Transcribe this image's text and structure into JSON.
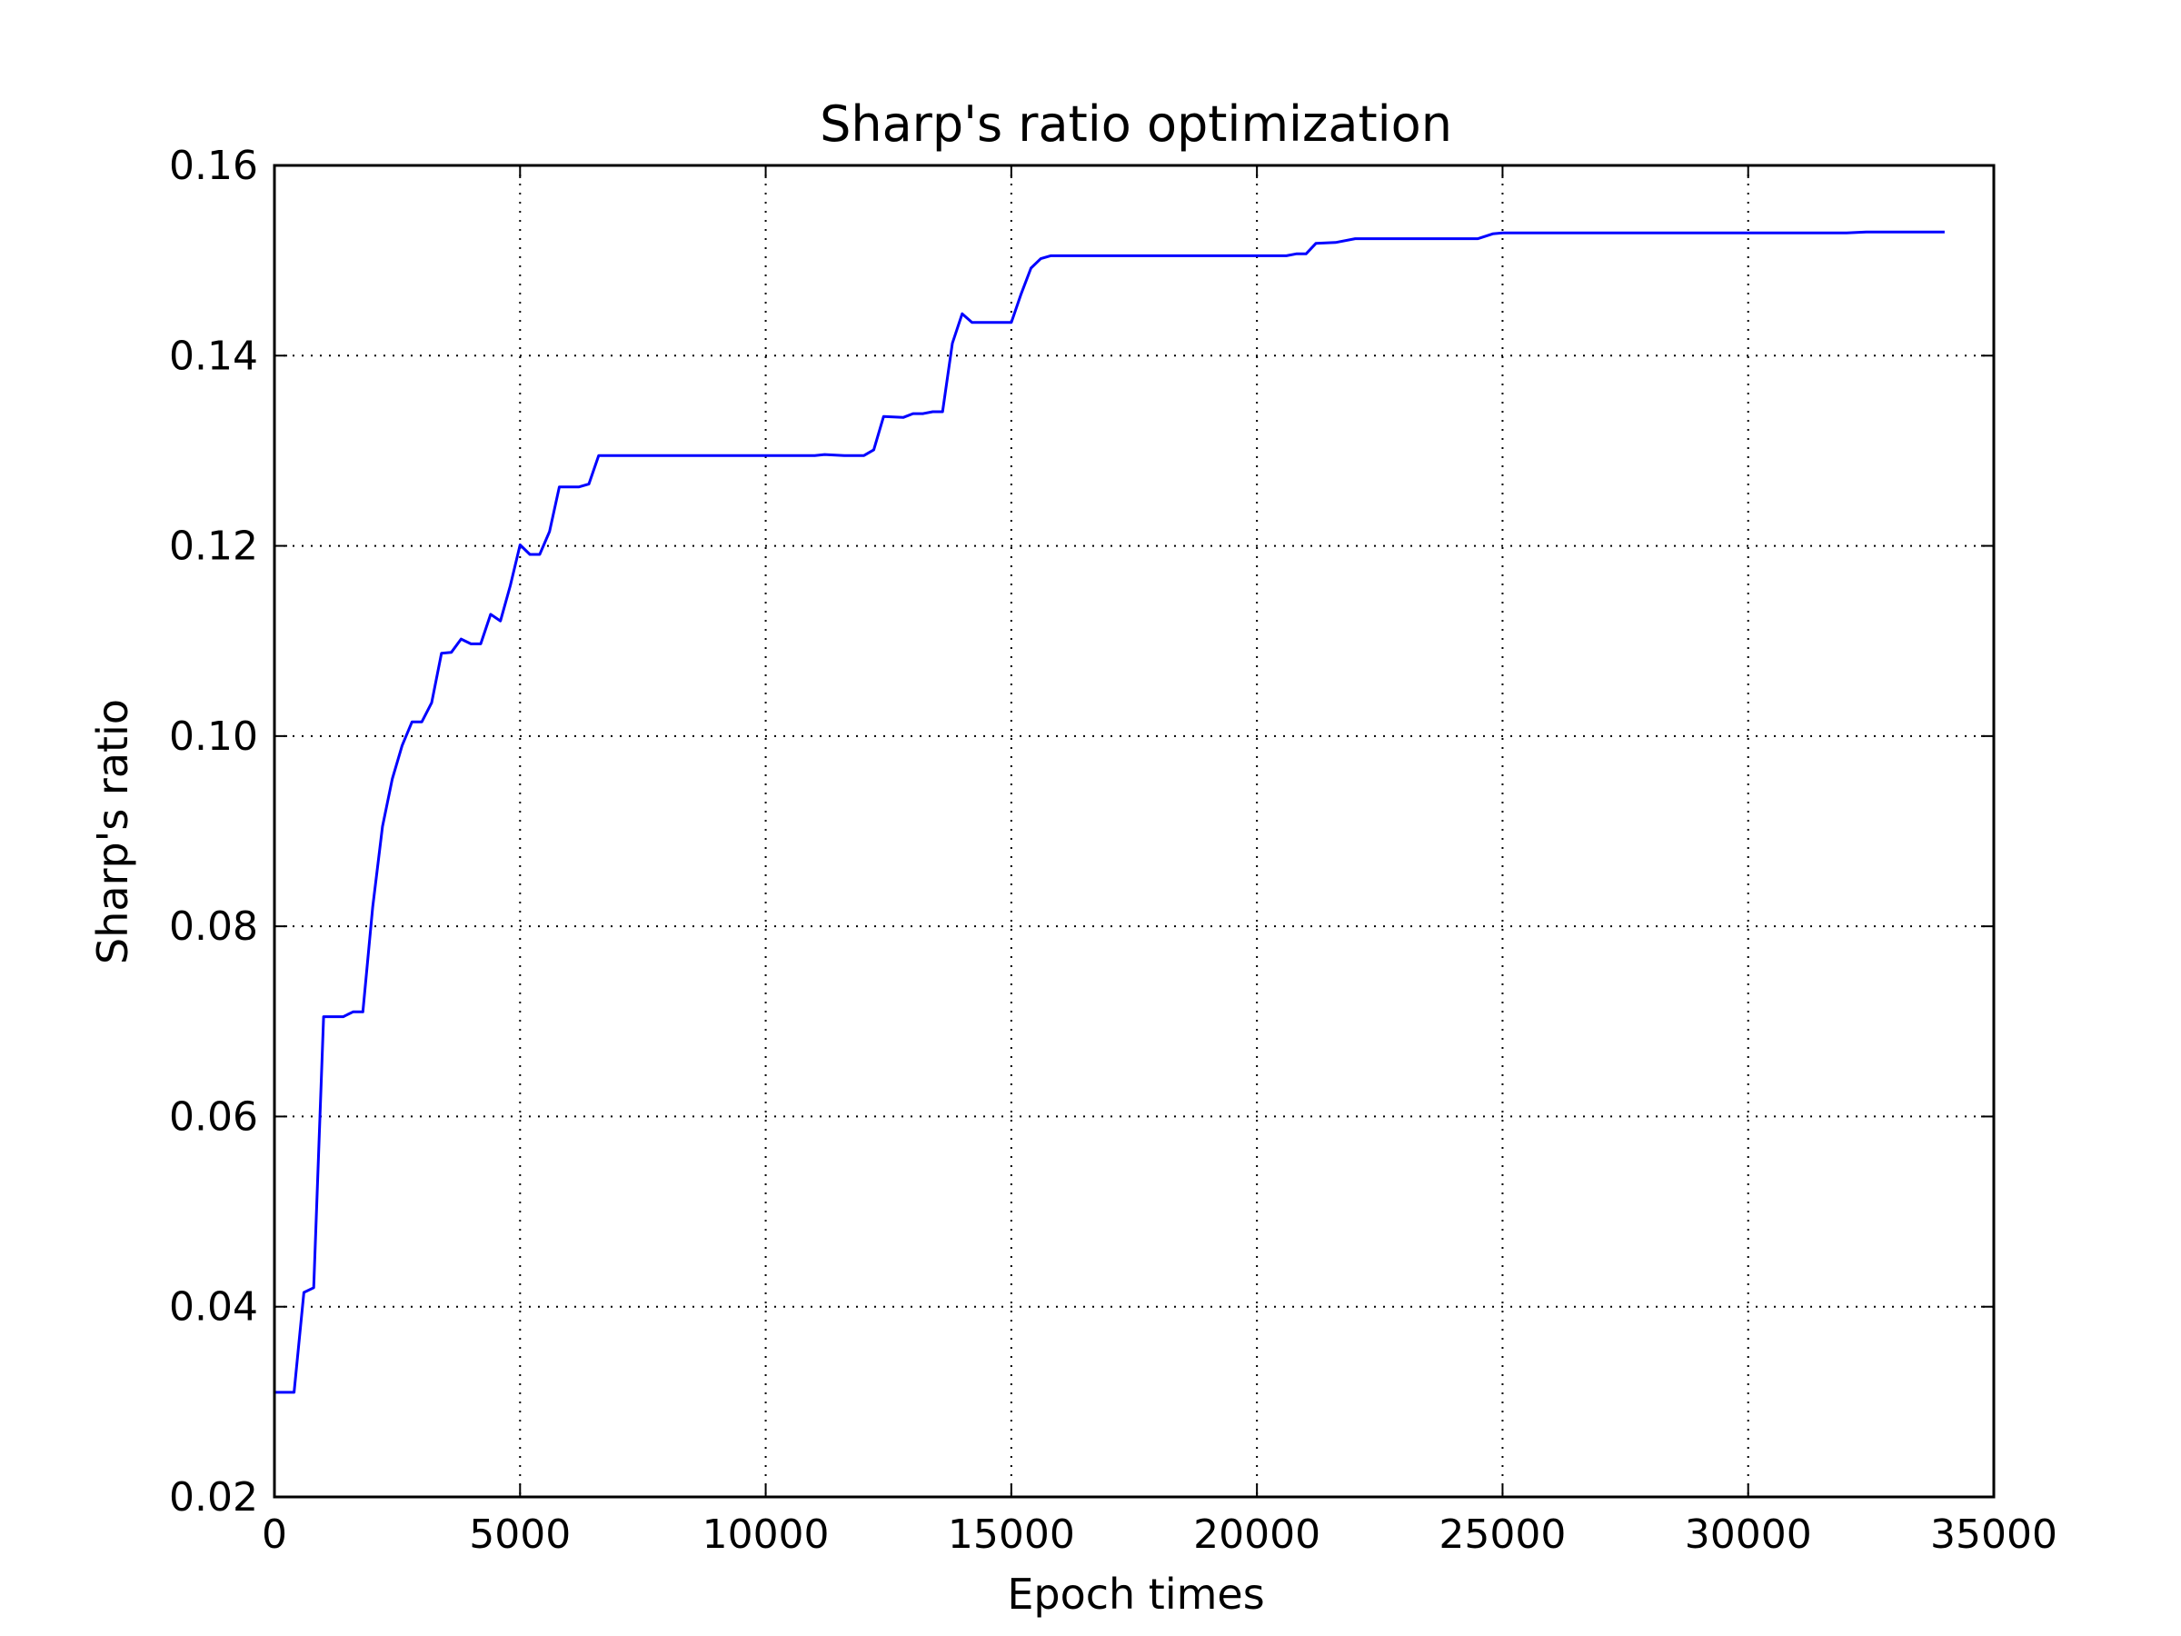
{
  "chart_data": {
    "type": "line",
    "title": "Sharp's ratio optimization",
    "xlabel": "Epoch times",
    "ylabel": "Sharp's ratio",
    "xlim": [
      0,
      35000
    ],
    "ylim": [
      0.02,
      0.16
    ],
    "xticks": [
      0,
      5000,
      10000,
      15000,
      20000,
      25000,
      30000,
      35000
    ],
    "xtick_labels": [
      "0",
      "5000",
      "10000",
      "15000",
      "20000",
      "25000",
      "30000",
      "35000"
    ],
    "yticks": [
      0.02,
      0.04,
      0.06,
      0.08,
      0.1,
      0.12,
      0.14,
      0.16
    ],
    "ytick_labels": [
      "0.02",
      "0.04",
      "0.06",
      "0.08",
      "0.10",
      "0.12",
      "0.14",
      "0.16"
    ],
    "grid": true,
    "series": [
      {
        "color": "#0000ff",
        "x": [
          0,
          400,
          600,
          800,
          1000,
          1400,
          1600,
          1800,
          2000,
          2200,
          2400,
          2600,
          2800,
          3000,
          3200,
          3400,
          3600,
          3800,
          4000,
          4200,
          4400,
          4600,
          4800,
          5000,
          5200,
          5400,
          5600,
          5800,
          6000,
          6200,
          6400,
          6600,
          7000,
          8000,
          9000,
          10000,
          11000,
          11200,
          11600,
          12000,
          12200,
          12400,
          12800,
          13000,
          13200,
          13400,
          13600,
          13800,
          14000,
          14200,
          14400,
          15000,
          15200,
          15400,
          15600,
          15800,
          16000,
          16200,
          17000,
          18000,
          19000,
          20000,
          20600,
          20800,
          21000,
          21200,
          21600,
          22000,
          22500,
          23000,
          24000,
          24500,
          24800,
          25000,
          26000,
          28000,
          30000,
          32000,
          32400,
          34000
        ],
        "y": [
          0.031,
          0.031,
          0.0415,
          0.042,
          0.0705,
          0.0705,
          0.071,
          0.071,
          0.082,
          0.0905,
          0.0955,
          0.099,
          0.1015,
          0.1015,
          0.1035,
          0.1087,
          0.1088,
          0.1102,
          0.1097,
          0.1097,
          0.1128,
          0.1121,
          0.1158,
          0.1201,
          0.1191,
          0.1191,
          0.1215,
          0.1262,
          0.1262,
          0.1262,
          0.1265,
          0.1295,
          0.1295,
          0.1295,
          0.1295,
          0.1295,
          0.1295,
          0.1296,
          0.1295,
          0.1295,
          0.1301,
          0.1336,
          0.1335,
          0.1339,
          0.1339,
          0.1341,
          0.1341,
          0.1413,
          0.1444,
          0.1435,
          0.1435,
          0.1435,
          0.1465,
          0.1492,
          0.1502,
          0.1505,
          0.1505,
          0.1505,
          0.1505,
          0.1505,
          0.1505,
          0.1505,
          0.1505,
          0.1507,
          0.1507,
          0.1518,
          0.1519,
          0.1523,
          0.1523,
          0.1523,
          0.1523,
          0.1523,
          0.1528,
          0.1529,
          0.1529,
          0.1529,
          0.1529,
          0.1529,
          0.153,
          0.153
        ]
      }
    ]
  }
}
